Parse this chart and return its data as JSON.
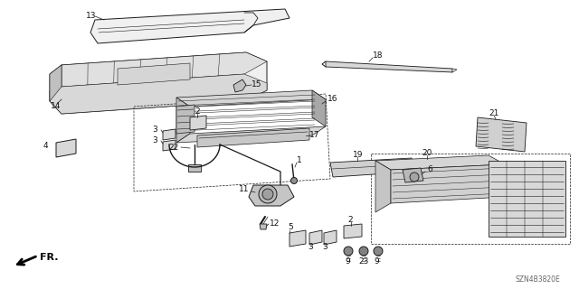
{
  "bg_color": "#ffffff",
  "line_color": "#1a1a1a",
  "label_color": "#111111",
  "diagram_code": "SZN4B3820E",
  "lw": 0.7,
  "parts_color": "#e8e8e8",
  "hatching_color": "#555555"
}
